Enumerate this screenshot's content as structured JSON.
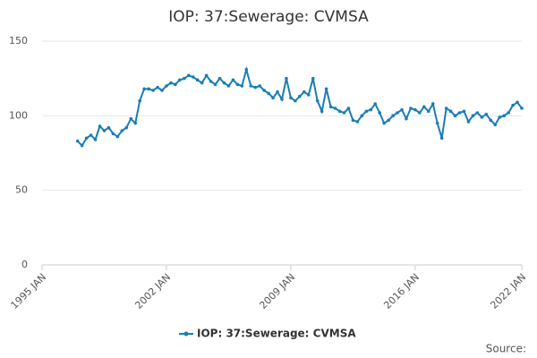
{
  "chart_data": {
    "type": "line",
    "title": "IOP: 37:Sewerage: CVMSA",
    "source": "Source:",
    "x": [
      "1997 JAN",
      "1997 APR",
      "1997 JUL",
      "1997 OCT",
      "1998 JAN",
      "1998 APR",
      "1998 JUL",
      "1998 OCT",
      "1999 JAN",
      "1999 APR",
      "1999 JUL",
      "1999 OCT",
      "2000 JAN",
      "2000 APR",
      "2000 JUL",
      "2000 OCT",
      "2001 JAN",
      "2001 APR",
      "2001 JUL",
      "2001 OCT",
      "2002 JAN",
      "2002 APR",
      "2002 JUL",
      "2002 OCT",
      "2003 JAN",
      "2003 APR",
      "2003 JUL",
      "2003 OCT",
      "2004 JAN",
      "2004 APR",
      "2004 JUL",
      "2004 OCT",
      "2005 JAN",
      "2005 APR",
      "2005 JUL",
      "2005 OCT",
      "2006 JAN",
      "2006 APR",
      "2006 JUL",
      "2006 OCT",
      "2007 JAN",
      "2007 APR",
      "2007 JUL",
      "2007 OCT",
      "2008 JAN",
      "2008 APR",
      "2008 JUL",
      "2008 OCT",
      "2009 JAN",
      "2009 APR",
      "2009 JUL",
      "2009 OCT",
      "2010 JAN",
      "2010 APR",
      "2010 JUL",
      "2010 OCT",
      "2011 JAN",
      "2011 APR",
      "2011 JUL",
      "2011 OCT",
      "2012 JAN",
      "2012 APR",
      "2012 JUL",
      "2012 OCT",
      "2013 JAN",
      "2013 APR",
      "2013 JUL",
      "2013 OCT",
      "2014 JAN",
      "2014 APR",
      "2014 JUL",
      "2014 OCT",
      "2015 JAN",
      "2015 APR",
      "2015 JUL",
      "2015 OCT",
      "2016 JAN",
      "2016 APR",
      "2016 JUL",
      "2016 OCT",
      "2017 JAN",
      "2017 APR",
      "2017 JUL",
      "2017 OCT",
      "2018 JAN",
      "2018 APR",
      "2018 JUL",
      "2018 OCT",
      "2019 JAN",
      "2019 APR",
      "2019 JUL",
      "2019 OCT",
      "2020 JAN",
      "2020 APR",
      "2020 JUL",
      "2020 OCT",
      "2021 JAN",
      "2021 APR",
      "2021 JUL",
      "2021 OCT",
      "2022 JAN"
    ],
    "series": [
      {
        "name": "IOP: 37:Sewerage: CVMSA",
        "color": "#1a7db6",
        "values": [
          83,
          80,
          85,
          87,
          84,
          93,
          90,
          92,
          88,
          86,
          90,
          92,
          98,
          95,
          110,
          118,
          118,
          117,
          119,
          117,
          120,
          122,
          121,
          124,
          125,
          127,
          126,
          124,
          122,
          127,
          123,
          121,
          125,
          122,
          120,
          124,
          121,
          120,
          131,
          120,
          119,
          120,
          117,
          115,
          112,
          116,
          111,
          125,
          112,
          110,
          113,
          116,
          114,
          125,
          110,
          103,
          118,
          106,
          105,
          103,
          102,
          105,
          97,
          96,
          100,
          103,
          104,
          108,
          102,
          95,
          97,
          100,
          102,
          104,
          98,
          105,
          104,
          102,
          106,
          103,
          108,
          95,
          85,
          105,
          103,
          100,
          102,
          103,
          96,
          100,
          102,
          99,
          101,
          97,
          94,
          99,
          100,
          102,
          107,
          109,
          105
        ]
      }
    ],
    "xlim": [
      "1995 JAN",
      "2022 JAN"
    ],
    "xticks": [
      "1995 JAN",
      "2002 JAN",
      "2009 JAN",
      "2016 JAN",
      "2022 JAN"
    ],
    "ylim": [
      0,
      150
    ],
    "yticks": [
      0,
      50,
      100,
      150
    ],
    "grid": true
  }
}
